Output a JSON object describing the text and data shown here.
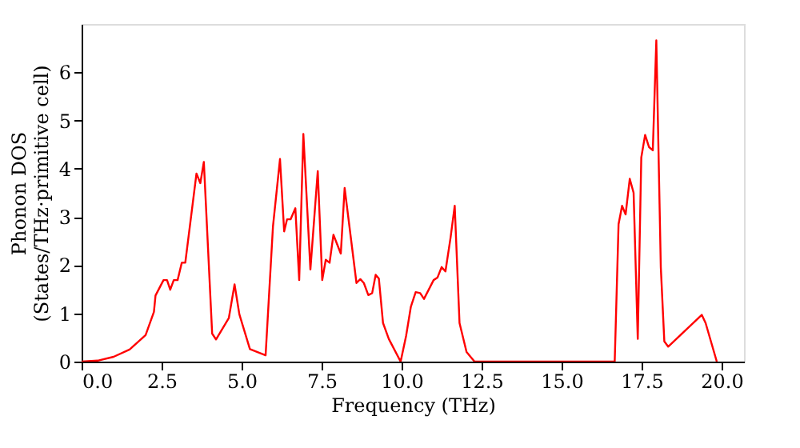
{
  "chart_data": {
    "type": "line",
    "xlabel": "Frequency (THz)",
    "ylabel": "Phonon DOS\n(States/THz·primitive cell)",
    "x": [
      0,
      0.5,
      1.0,
      1.5,
      2.0,
      2.26,
      2.31,
      2.56,
      2.67,
      2.77,
      2.88,
      3.0,
      3.13,
      3.24,
      3.59,
      3.71,
      3.82,
      4.08,
      4.2,
      4.6,
      4.78,
      4.93,
      5.26,
      5.75,
      5.98,
      6.2,
      6.33,
      6.42,
      6.53,
      6.68,
      6.8,
      6.93,
      7.15,
      7.38,
      7.52,
      7.63,
      7.75,
      7.87,
      8.1,
      8.22,
      8.59,
      8.71,
      8.82,
      8.96,
      9.08,
      9.19,
      9.29,
      9.42,
      9.6,
      9.97,
      10.14,
      10.29,
      10.44,
      10.58,
      10.7,
      11.0,
      11.12,
      11.25,
      11.37,
      11.53,
      11.66,
      11.81,
      12.03,
      12.28,
      16.66,
      16.78,
      16.89,
      17.0,
      17.13,
      17.25,
      17.38,
      17.49,
      17.61,
      17.73,
      17.85,
      17.96,
      18.1,
      18.21,
      18.33,
      19.38,
      19.5,
      19.85
    ],
    "series": [
      {
        "color": "#ff0000",
        "values": [
          0,
          0.02,
          0.1,
          0.25,
          0.55,
          1.03,
          1.37,
          1.69,
          1.69,
          1.49,
          1.69,
          1.69,
          2.05,
          2.05,
          3.9,
          3.7,
          4.14,
          0.58,
          0.46,
          0.9,
          1.6,
          0.98,
          0.26,
          0.13,
          2.8,
          4.2,
          2.7,
          2.95,
          2.95,
          3.18,
          1.69,
          4.72,
          1.91,
          3.95,
          1.69,
          2.11,
          2.05,
          2.63,
          2.24,
          3.6,
          1.63,
          1.71,
          1.63,
          1.38,
          1.42,
          1.8,
          1.72,
          0.8,
          0.47,
          0,
          0.53,
          1.14,
          1.44,
          1.42,
          1.3,
          1.69,
          1.74,
          1.96,
          1.87,
          2.57,
          3.23,
          0.8,
          0.2,
          0,
          0,
          2.85,
          3.23,
          3.05,
          3.79,
          3.5,
          0.47,
          4.23,
          4.7,
          4.45,
          4.38,
          6.66,
          1.96,
          0.42,
          0.31,
          0.97,
          0.8,
          0
        ]
      }
    ],
    "xlim": [
      0,
      20.7
    ],
    "ylim": [
      0,
      7
    ],
    "xticks": [
      {
        "value": 0,
        "label": "0.0"
      },
      {
        "value": 2.5,
        "label": "2.5"
      },
      {
        "value": 5,
        "label": "5.0"
      },
      {
        "value": 7.5,
        "label": "7.5"
      },
      {
        "value": 10,
        "label": "10.0"
      },
      {
        "value": 12.5,
        "label": "12.5"
      },
      {
        "value": 15,
        "label": "15.0"
      },
      {
        "value": 17.5,
        "label": "17.5"
      },
      {
        "value": 20,
        "label": "20.0"
      }
    ],
    "yticks": [
      0,
      1,
      2,
      3,
      4,
      5,
      6
    ],
    "grid": false,
    "line_style": "solid"
  }
}
